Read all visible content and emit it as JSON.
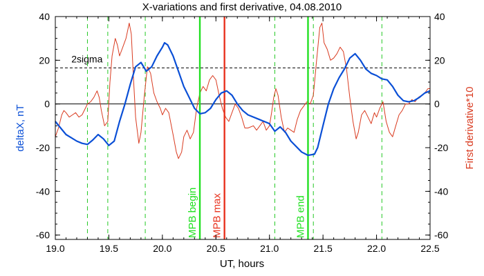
{
  "chart_data": {
    "type": "line",
    "title": "X-variations and first derivative, 04.08.2010",
    "xlabel": "UT, hours",
    "ylabel_left": "deltaX, nT",
    "ylabel_right": "First derivative*10",
    "xlim": [
      19.0,
      22.5
    ],
    "ylim": [
      -62,
      40
    ],
    "xticks": [
      "19.0",
      "19.5",
      "20.0",
      "20.5",
      "21.0",
      "21.5",
      "22.0",
      "22.5"
    ],
    "yticks_left": [
      "-60",
      "-40",
      "-20",
      "0",
      "20",
      "40"
    ],
    "yticks_right": [
      "-60",
      "-40",
      "-20",
      "0",
      "20",
      "40"
    ],
    "zero_line": 0,
    "sigma_line": {
      "label": "2sigma",
      "value": 16.5
    },
    "colors": {
      "deltaX": "#0a4fd6",
      "derivative": "#d93a1f",
      "mpb_edge": "#22e022",
      "mpb_max": "#e8321e",
      "dashed_green": "#22c822",
      "axes": "#000000"
    },
    "markers": [
      {
        "label": "MPB begin",
        "x": 20.35,
        "color": "#22e022"
      },
      {
        "label": "MPB max",
        "x": 20.58,
        "color": "#e8321e"
      },
      {
        "label": "MPB end",
        "x": 21.36,
        "color": "#22e022"
      }
    ],
    "dashed_lines_x": [
      19.3,
      19.49,
      19.84,
      21.05,
      21.41,
      22.05
    ],
    "series": [
      {
        "key": "deltaX",
        "axis": "left",
        "points": [
          [
            19.0,
            -8
          ],
          [
            19.05,
            -11
          ],
          [
            19.1,
            -14
          ],
          [
            19.15,
            -15.5
          ],
          [
            19.2,
            -17
          ],
          [
            19.25,
            -18
          ],
          [
            19.3,
            -18.5
          ],
          [
            19.35,
            -16.5
          ],
          [
            19.4,
            -14
          ],
          [
            19.45,
            -16
          ],
          [
            19.5,
            -19
          ],
          [
            19.55,
            -17
          ],
          [
            19.6,
            -8
          ],
          [
            19.65,
            0
          ],
          [
            19.7,
            9
          ],
          [
            19.75,
            17
          ],
          [
            19.8,
            19
          ],
          [
            19.85,
            15
          ],
          [
            19.9,
            17
          ],
          [
            19.95,
            22
          ],
          [
            20.0,
            26
          ],
          [
            20.02,
            28
          ],
          [
            20.05,
            27
          ],
          [
            20.1,
            22
          ],
          [
            20.15,
            15
          ],
          [
            20.2,
            8
          ],
          [
            20.25,
            3
          ],
          [
            20.3,
            -2
          ],
          [
            20.35,
            -4.5
          ],
          [
            20.4,
            -4
          ],
          [
            20.45,
            -2
          ],
          [
            20.5,
            2
          ],
          [
            20.55,
            5
          ],
          [
            20.6,
            6
          ],
          [
            20.65,
            4
          ],
          [
            20.7,
            0
          ],
          [
            20.75,
            -3
          ],
          [
            20.8,
            -5
          ],
          [
            20.9,
            -7
          ],
          [
            21.0,
            -9
          ],
          [
            21.05,
            -12.5
          ],
          [
            21.1,
            -10.5
          ],
          [
            21.15,
            -13
          ],
          [
            21.2,
            -17
          ],
          [
            21.3,
            -22
          ],
          [
            21.36,
            -23.5
          ],
          [
            21.42,
            -23
          ],
          [
            21.45,
            -20
          ],
          [
            21.5,
            -10
          ],
          [
            21.55,
            0
          ],
          [
            21.6,
            7
          ],
          [
            21.65,
            12
          ],
          [
            21.7,
            16
          ],
          [
            21.75,
            21
          ],
          [
            21.8,
            23
          ],
          [
            21.85,
            20
          ],
          [
            21.9,
            16
          ],
          [
            21.95,
            14
          ],
          [
            22.0,
            13
          ],
          [
            22.05,
            11.5
          ],
          [
            22.1,
            11
          ],
          [
            22.15,
            8
          ],
          [
            22.2,
            4
          ],
          [
            22.25,
            1.5
          ],
          [
            22.3,
            1
          ],
          [
            22.35,
            1.5
          ],
          [
            22.4,
            3
          ],
          [
            22.45,
            5
          ],
          [
            22.5,
            6
          ]
        ]
      },
      {
        "key": "derivative",
        "axis": "right",
        "points": [
          [
            19.0,
            -15
          ],
          [
            19.03,
            -11
          ],
          [
            19.06,
            -5
          ],
          [
            19.08,
            -3
          ],
          [
            19.1,
            -4
          ],
          [
            19.13,
            -6
          ],
          [
            19.16,
            -5
          ],
          [
            19.19,
            -4
          ],
          [
            19.22,
            -6
          ],
          [
            19.25,
            -5
          ],
          [
            19.28,
            -2
          ],
          [
            19.3,
            0
          ],
          [
            19.33,
            1
          ],
          [
            19.36,
            3
          ],
          [
            19.39,
            6
          ],
          [
            19.41,
            3
          ],
          [
            19.43,
            -3
          ],
          [
            19.46,
            -10
          ],
          [
            19.49,
            -8
          ],
          [
            19.51,
            10
          ],
          [
            19.53,
            22
          ],
          [
            19.56,
            30
          ],
          [
            19.58,
            27
          ],
          [
            19.6,
            22
          ],
          [
            19.63,
            26
          ],
          [
            19.66,
            30
          ],
          [
            19.69,
            37
          ],
          [
            19.71,
            32
          ],
          [
            19.73,
            12
          ],
          [
            19.75,
            -6
          ],
          [
            19.78,
            -18
          ],
          [
            19.8,
            -13
          ],
          [
            19.83,
            3
          ],
          [
            19.86,
            17
          ],
          [
            19.89,
            14
          ],
          [
            19.92,
            5
          ],
          [
            19.95,
            1
          ],
          [
            19.98,
            -2
          ],
          [
            20.0,
            -5
          ],
          [
            20.03,
            -2
          ],
          [
            20.06,
            -4
          ],
          [
            20.1,
            -14
          ],
          [
            20.13,
            -22
          ],
          [
            20.15,
            -25
          ],
          [
            20.18,
            -22
          ],
          [
            20.2,
            -15
          ],
          [
            20.23,
            -12
          ],
          [
            20.26,
            -16
          ],
          [
            20.29,
            -13
          ],
          [
            20.32,
            -2
          ],
          [
            20.35,
            5
          ],
          [
            20.38,
            8
          ],
          [
            20.41,
            6
          ],
          [
            20.44,
            11
          ],
          [
            20.47,
            13
          ],
          [
            20.5,
            11
          ],
          [
            20.53,
            4
          ],
          [
            20.56,
            -2
          ],
          [
            20.59,
            -6
          ],
          [
            20.62,
            -8
          ],
          [
            20.65,
            -4
          ],
          [
            20.68,
            0
          ],
          [
            20.71,
            -2
          ],
          [
            20.74,
            -6
          ],
          [
            20.77,
            -11
          ],
          [
            20.8,
            -11
          ],
          [
            20.85,
            -10
          ],
          [
            20.88,
            -12
          ],
          [
            20.91,
            -10
          ],
          [
            20.94,
            -8
          ],
          [
            20.97,
            -12
          ],
          [
            21.0,
            -10
          ],
          [
            21.02,
            -4
          ],
          [
            21.04,
            3
          ],
          [
            21.06,
            7
          ],
          [
            21.08,
            4
          ],
          [
            21.11,
            -6
          ],
          [
            21.14,
            -13
          ],
          [
            21.17,
            -11
          ],
          [
            21.2,
            -12
          ],
          [
            21.23,
            -13
          ],
          [
            21.26,
            -7
          ],
          [
            21.29,
            -3
          ],
          [
            21.32,
            -1
          ],
          [
            21.35,
            1
          ],
          [
            21.38,
            0
          ],
          [
            21.41,
            4
          ],
          [
            21.44,
            20
          ],
          [
            21.47,
            35
          ],
          [
            21.49,
            37
          ],
          [
            21.51,
            28
          ],
          [
            21.54,
            25
          ],
          [
            21.57,
            20
          ],
          [
            21.6,
            21
          ],
          [
            21.63,
            23
          ],
          [
            21.66,
            26
          ],
          [
            21.69,
            24
          ],
          [
            21.72,
            16
          ],
          [
            21.75,
            3
          ],
          [
            21.78,
            -8
          ],
          [
            21.81,
            -16
          ],
          [
            21.83,
            -13
          ],
          [
            21.86,
            -5
          ],
          [
            21.89,
            -3
          ],
          [
            21.92,
            -6
          ],
          [
            21.95,
            -9
          ],
          [
            21.98,
            -4
          ],
          [
            22.0,
            -6
          ],
          [
            22.03,
            -2
          ],
          [
            22.06,
            1
          ],
          [
            22.09,
            -8
          ],
          [
            22.12,
            -13
          ],
          [
            22.15,
            -15
          ],
          [
            22.18,
            -10
          ],
          [
            22.21,
            -5
          ],
          [
            22.24,
            -3
          ],
          [
            22.27,
            0
          ],
          [
            22.3,
            0
          ],
          [
            22.33,
            2
          ],
          [
            22.36,
            1
          ],
          [
            22.39,
            3
          ],
          [
            22.42,
            4
          ],
          [
            22.45,
            5
          ],
          [
            22.48,
            7
          ],
          [
            22.5,
            7
          ]
        ]
      }
    ]
  }
}
